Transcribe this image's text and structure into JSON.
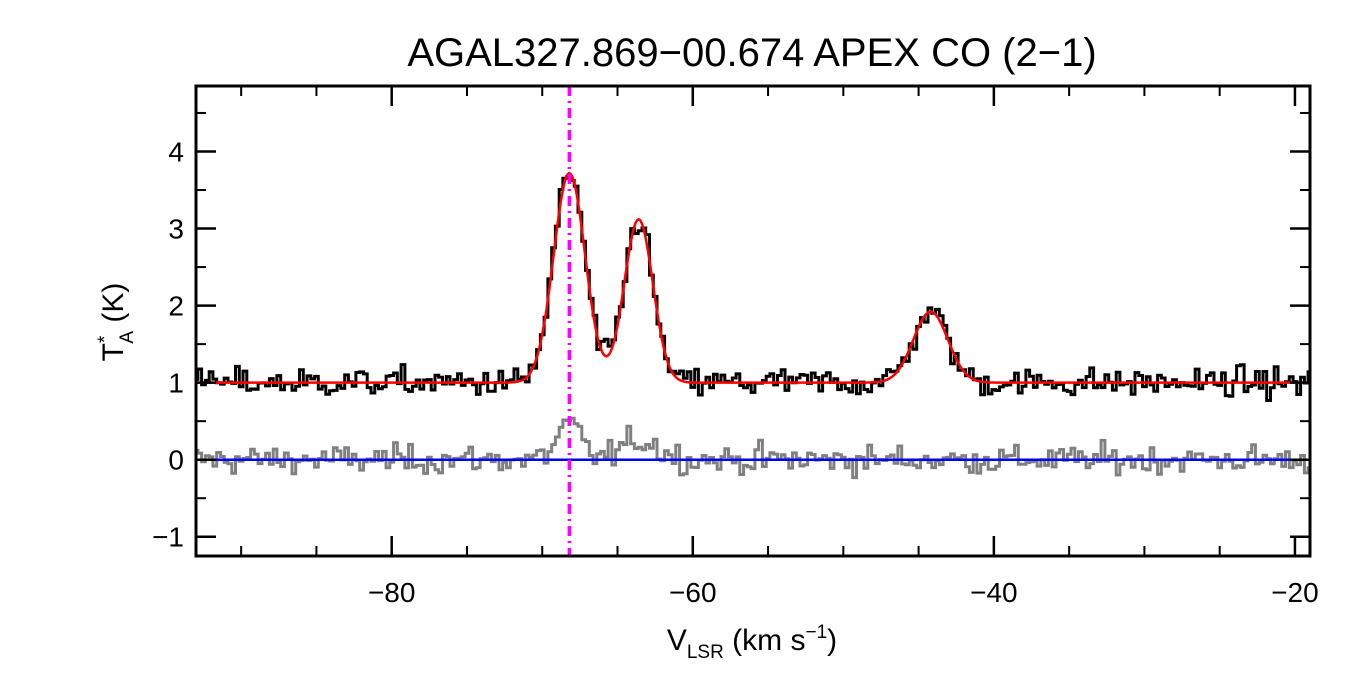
{
  "chart_data": {
    "type": "line",
    "title": "AGAL327.869−00.674  APEX CO (2−1)",
    "xlabel": {
      "main": "V",
      "sub": "LSR",
      "unit_pre": " (km s",
      "unit_sup": "−1",
      "unit_post": ")"
    },
    "ylabel": {
      "main": "T",
      "sup": "*",
      "sub": "A",
      "unit": " (K)"
    },
    "xlim": [
      -93,
      -19
    ],
    "ylim": [
      -1.25,
      4.85
    ],
    "xticks": [
      {
        "value": -80,
        "label": "−80"
      },
      {
        "value": -60,
        "label": "−60"
      },
      {
        "value": -40,
        "label": "−40"
      },
      {
        "value": -20,
        "label": "−20"
      }
    ],
    "yticks": [
      {
        "value": -1,
        "label": "−1"
      },
      {
        "value": 0,
        "label": "0"
      },
      {
        "value": 1,
        "label": "1"
      },
      {
        "value": 2,
        "label": "2"
      },
      {
        "value": 3,
        "label": "3"
      },
      {
        "value": 4,
        "label": "4"
      }
    ],
    "vline": {
      "x": -68.2,
      "color": "#ff00ff",
      "style": "dash-dot"
    },
    "zero_line": {
      "y": 0,
      "color": "#0000ff"
    },
    "spectrum": {
      "color": "#000000",
      "channel_width": 0.25,
      "offset": 1.0,
      "noise_amplitude": 0.18
    },
    "residual": {
      "color": "#808080",
      "channel_width": 0.25,
      "offset": 0.0,
      "noise_amplitude": 0.18,
      "extra_bumps": [
        {
          "center": -68.2,
          "amplitude": 0.45,
          "sigma": 0.8
        },
        {
          "center": -63.5,
          "amplitude": 0.25,
          "sigma": 1.2
        }
      ]
    },
    "fit": {
      "color": "#ff0000",
      "baseline": 1.0,
      "components": [
        {
          "center": -68.2,
          "amplitude": 2.72,
          "sigma": 1.05
        },
        {
          "center": -63.6,
          "amplitude": 2.12,
          "sigma": 0.95
        },
        {
          "center": -44.2,
          "amplitude": 0.92,
          "sigma": 1.15
        }
      ]
    }
  }
}
